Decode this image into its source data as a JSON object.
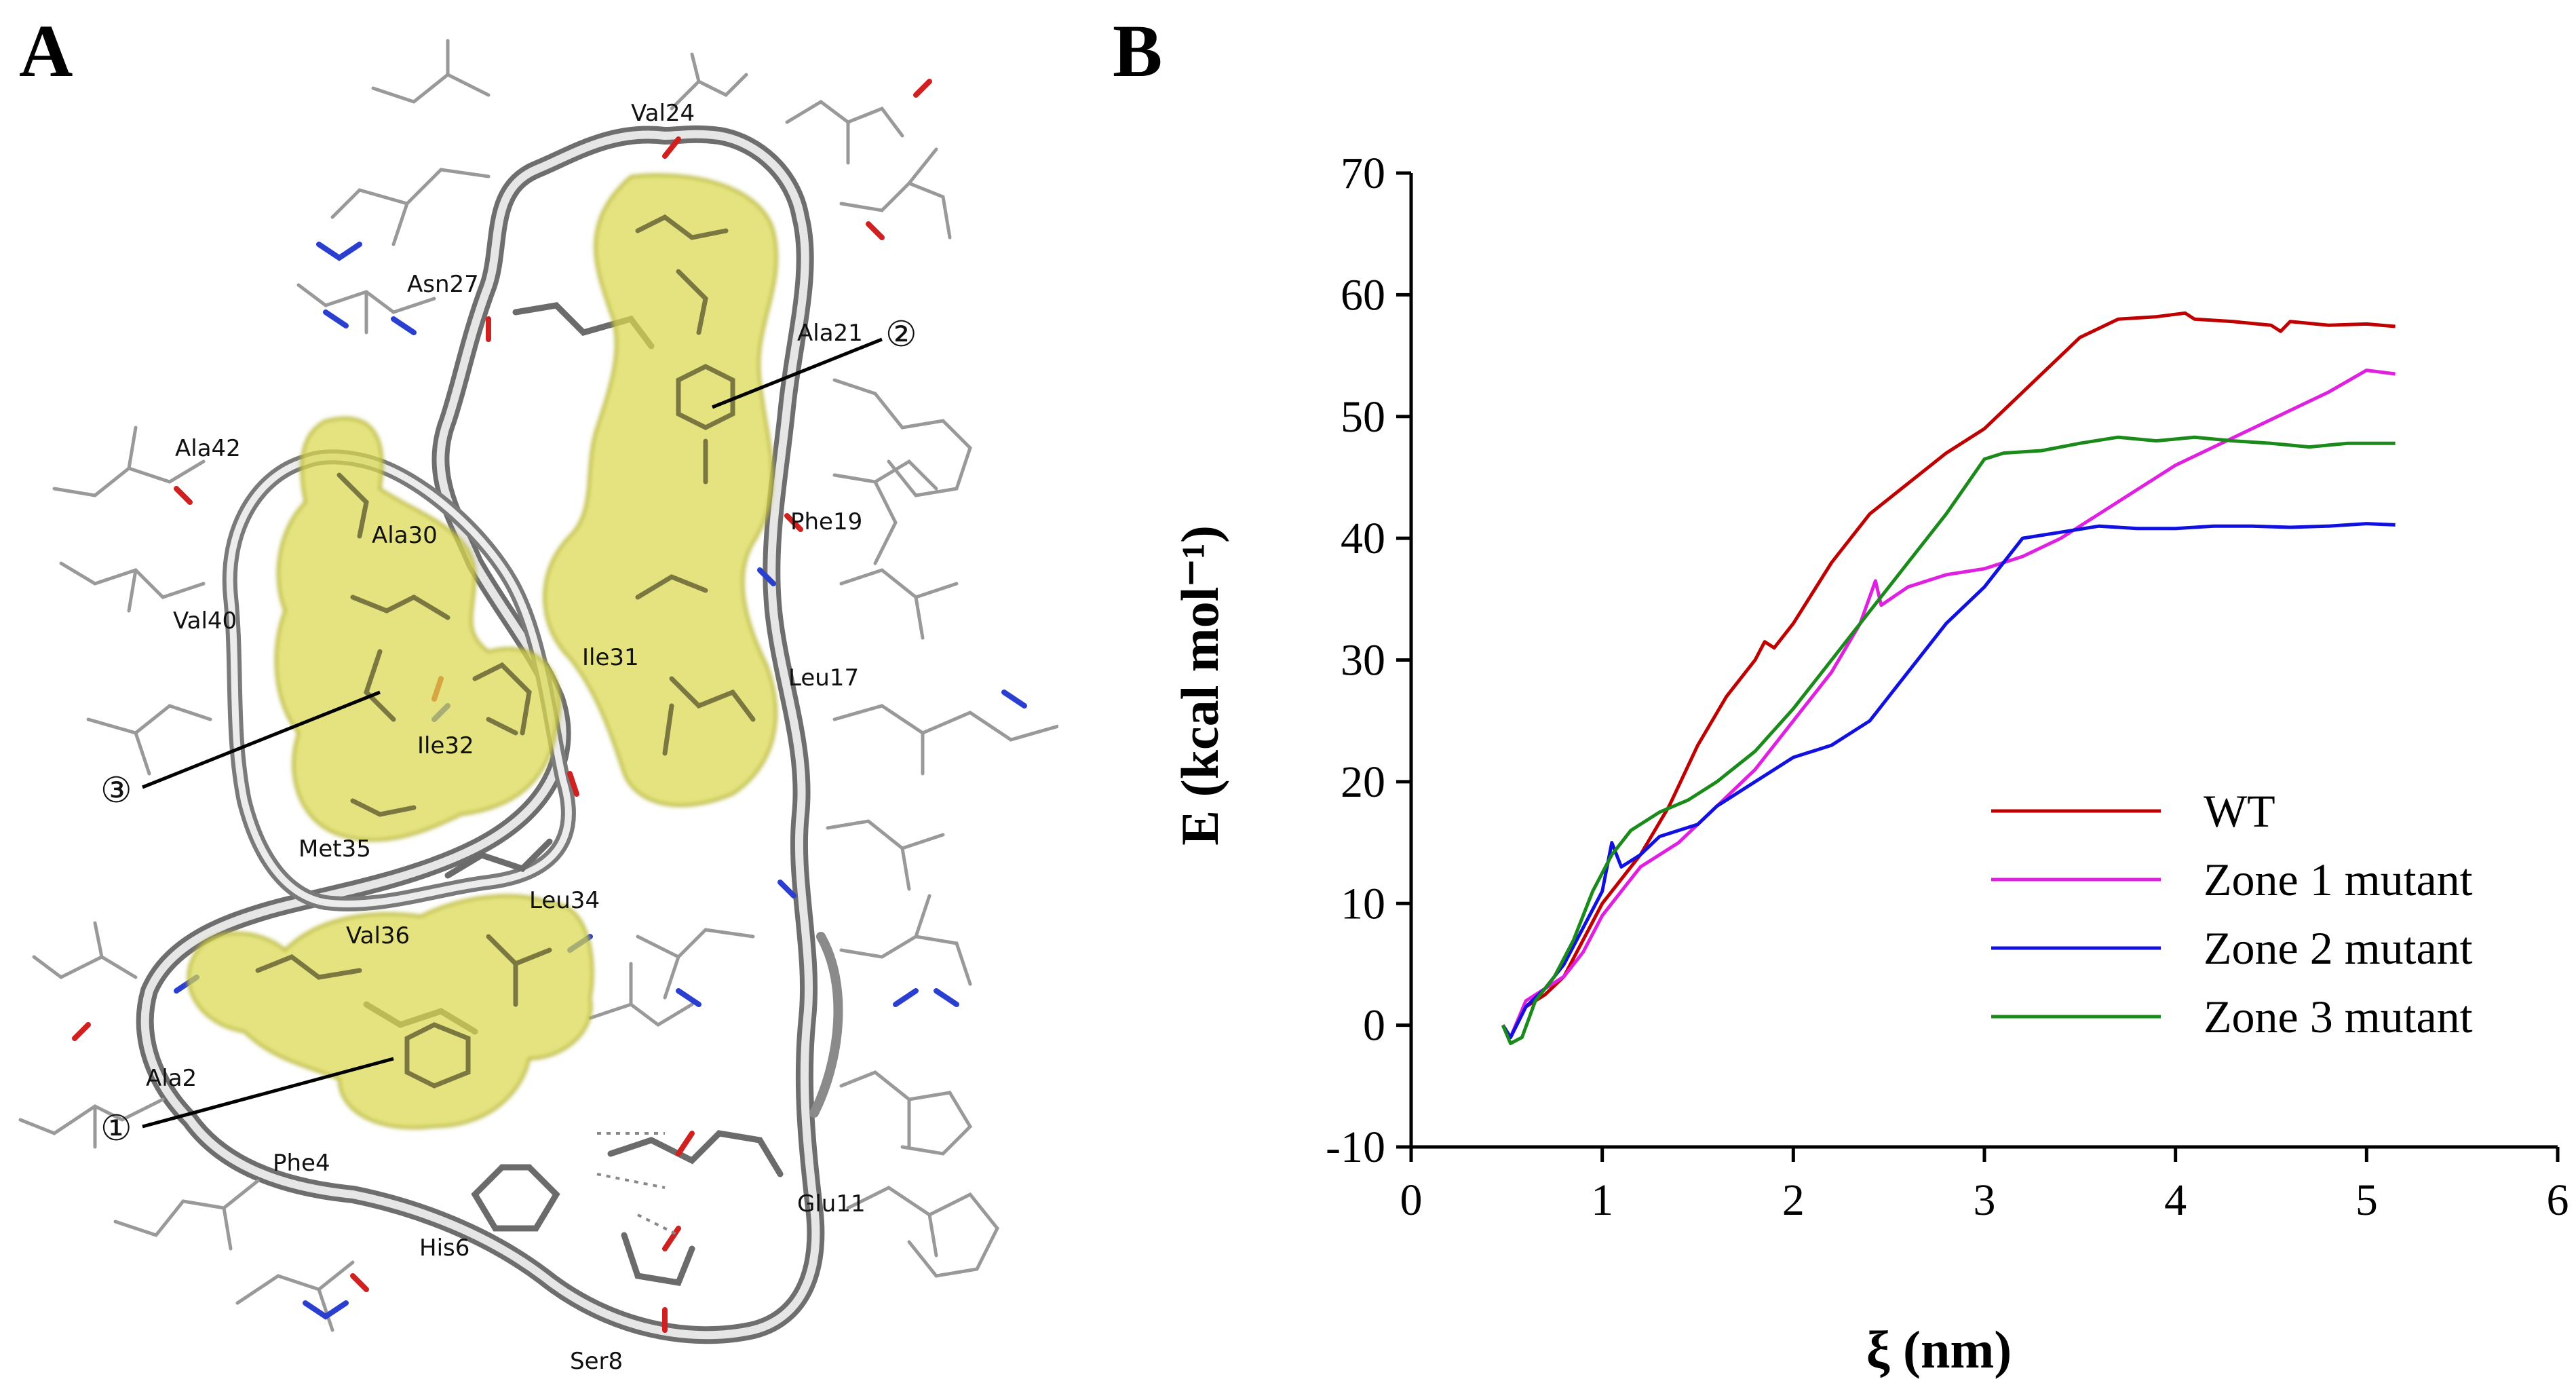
{
  "figure": {
    "panel_a": {
      "letter": "A",
      "residues": [
        "Val24",
        "Asn27",
        "Ala21",
        "Ala42",
        "Ala30",
        "Phe19",
        "Val40",
        "Ile31",
        "Leu17",
        "Ile32",
        "Met35",
        "Leu34",
        "Val36",
        "Ala2",
        "Phe4",
        "Glu11",
        "His6",
        "Ser8"
      ],
      "zones": [
        "①",
        "②",
        "③"
      ]
    },
    "panel_b": {
      "letter": "B"
    }
  },
  "chart_data": {
    "type": "line",
    "xlabel": "ξ (nm)",
    "ylabel": "E (kcal mol⁻¹)",
    "xlim": [
      0,
      6
    ],
    "ylim": [
      -10,
      70
    ],
    "xticks": [
      "0",
      "1",
      "2",
      "3",
      "4",
      "5",
      "6"
    ],
    "yticks": [
      "-10",
      "0",
      "10",
      "20",
      "30",
      "40",
      "50",
      "60",
      "70"
    ],
    "legend_position": "bottom-right",
    "series": [
      {
        "name": "WT",
        "color": "#c00000",
        "x": [
          0.48,
          0.52,
          0.6,
          0.7,
          0.8,
          0.9,
          1.0,
          1.1,
          1.2,
          1.35,
          1.5,
          1.65,
          1.8,
          1.85,
          1.9,
          2.0,
          2.2,
          2.4,
          2.6,
          2.8,
          3.0,
          3.2,
          3.4,
          3.5,
          3.7,
          3.9,
          4.05,
          4.1,
          4.3,
          4.5,
          4.55,
          4.6,
          4.8,
          5.0,
          5.15
        ],
        "y": [
          0,
          -1,
          1.5,
          2.5,
          4,
          7,
          10,
          12,
          14,
          18,
          23,
          27,
          30,
          31.5,
          31,
          33,
          38,
          42,
          44.5,
          47,
          49,
          52,
          55,
          56.5,
          58,
          58.2,
          58.5,
          58,
          57.8,
          57.5,
          57,
          57.8,
          57.5,
          57.6,
          57.4
        ]
      },
      {
        "name": "Zone 1 mutant",
        "color": "#e020e0",
        "x": [
          0.48,
          0.52,
          0.6,
          0.7,
          0.8,
          0.9,
          1.0,
          1.1,
          1.2,
          1.4,
          1.6,
          1.8,
          2.0,
          2.2,
          2.35,
          2.43,
          2.46,
          2.6,
          2.8,
          3.0,
          3.2,
          3.4,
          3.6,
          3.8,
          4.0,
          4.2,
          4.4,
          4.6,
          4.8,
          5.0,
          5.15
        ],
        "y": [
          0,
          -1,
          2,
          3,
          4,
          6,
          9,
          11,
          13,
          15,
          18,
          21,
          25,
          29,
          33,
          36.5,
          34.5,
          36,
          37,
          37.5,
          38.5,
          40,
          42,
          44,
          46,
          47.5,
          49,
          50.5,
          52,
          53.8,
          53.5
        ]
      },
      {
        "name": "Zone 2 mutant",
        "color": "#1010e0",
        "x": [
          0.48,
          0.52,
          0.6,
          0.7,
          0.8,
          0.9,
          1.0,
          1.05,
          1.1,
          1.2,
          1.3,
          1.4,
          1.5,
          1.6,
          1.8,
          2.0,
          2.2,
          2.4,
          2.6,
          2.8,
          3.0,
          3.2,
          3.4,
          3.6,
          3.8,
          4.0,
          4.2,
          4.4,
          4.6,
          4.8,
          5.0,
          5.15
        ],
        "y": [
          0,
          -1,
          1.5,
          3,
          5,
          8,
          11,
          15,
          13,
          14,
          15.5,
          16,
          16.5,
          18,
          20,
          22,
          23,
          25,
          29,
          33,
          36,
          40,
          40.5,
          41,
          40.8,
          40.8,
          41,
          41,
          40.9,
          41,
          41.2,
          41.1
        ]
      },
      {
        "name": "Zone 3 mutant",
        "color": "#1a8a1a",
        "x": [
          0.48,
          0.52,
          0.58,
          0.65,
          0.75,
          0.85,
          0.95,
          1.05,
          1.15,
          1.3,
          1.45,
          1.6,
          1.8,
          2.0,
          2.2,
          2.4,
          2.6,
          2.8,
          3.0,
          3.1,
          3.3,
          3.5,
          3.7,
          3.9,
          4.1,
          4.3,
          4.5,
          4.7,
          4.9,
          5.15
        ],
        "y": [
          0,
          -1.5,
          -1,
          2,
          4,
          7,
          11,
          14,
          16,
          17.5,
          18.5,
          20,
          22.5,
          26,
          30,
          34,
          38,
          42,
          46.5,
          47,
          47.2,
          47.8,
          48.3,
          48,
          48.3,
          48,
          47.8,
          47.5,
          47.8,
          47.8
        ]
      }
    ]
  }
}
